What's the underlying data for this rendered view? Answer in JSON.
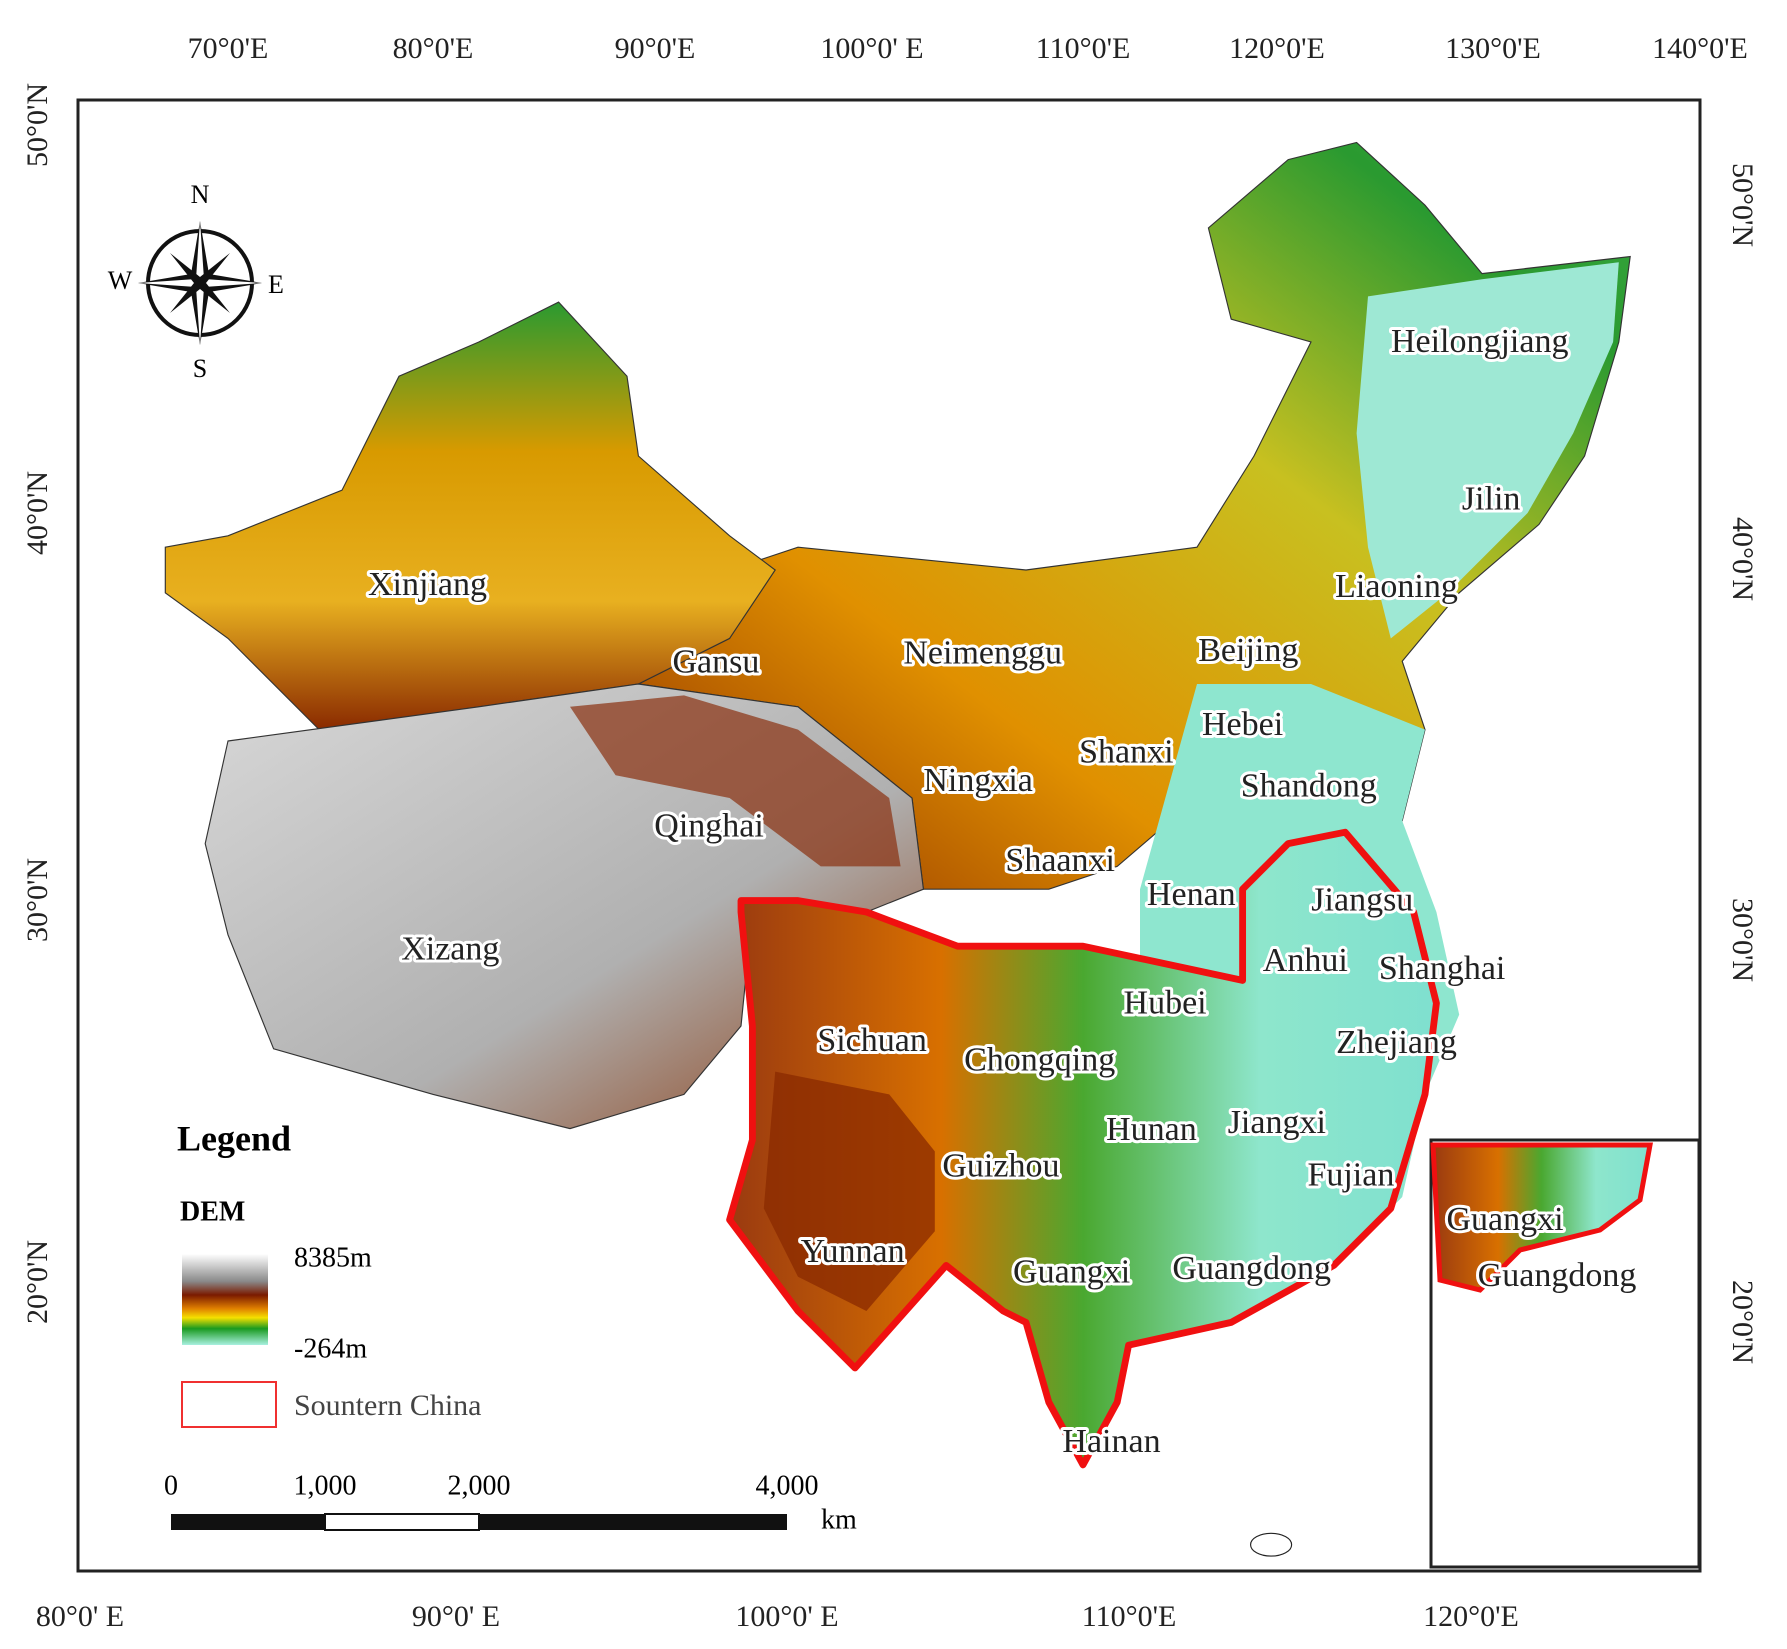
{
  "graticule": {
    "top": [
      "70°0'E",
      "80°0'E",
      "90°0'E",
      "100°0' E",
      "110°0'E",
      "120°0'E",
      "130°0'E",
      "140°0'E"
    ],
    "bottom": [
      "80°0' E",
      "90°0' E",
      "100°0' E",
      "110°0'E",
      "120°0'E"
    ],
    "left": [
      "50°0'N",
      "40°0'N",
      "30°0'N",
      "20°0'N"
    ],
    "right": [
      "50°0'N",
      "40°0'N",
      "30°0'N",
      "20°0'N"
    ]
  },
  "compass": {
    "n": "N",
    "s": "S",
    "e": "E",
    "w": "W"
  },
  "provinces": [
    "Xinjiang",
    "Gansu",
    "Neimenggu",
    "Beijing",
    "Heilongjiang",
    "Jilin",
    "Liaoning",
    "Hebei",
    "Shanxi",
    "Shandong",
    "Ningxia",
    "Qinghai",
    "Shaanxi",
    "Henan",
    "Jiangsu",
    "Xizang",
    "Anhui",
    "Shanghai",
    "Hubei",
    "Sichuan",
    "Chongqing",
    "Zhejiang",
    "Hunan",
    "Jiangxi",
    "Guizhou",
    "Fujian",
    "Yunnan",
    "Guangxi",
    "Guangdong",
    "Hainan"
  ],
  "inset": {
    "labels": [
      "Guangxi",
      "Guangdong"
    ]
  },
  "legend": {
    "title": "Legend",
    "dem": "DEM",
    "max": "8385m",
    "min": "-264m",
    "region": "Sountern China"
  },
  "scale_bar": {
    "ticks": [
      "0",
      "1,000",
      "2,000",
      "4,000"
    ],
    "unit": "km"
  }
}
